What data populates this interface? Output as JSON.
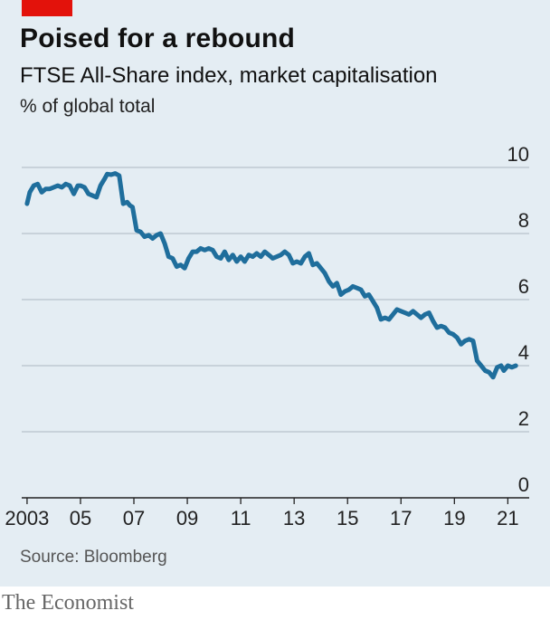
{
  "header": {
    "title": "Poised for a rebound",
    "subtitle": "FTSE All-Share index, market capitalisation",
    "unit": "% of global total"
  },
  "footer": {
    "source": "Source: Bloomberg",
    "brand": "The Economist"
  },
  "colors": {
    "line": "#1f6e9c",
    "grid": "#b7c3cc",
    "accent": "#e3120b",
    "background": "#e4edf3"
  },
  "chart_data": {
    "type": "line",
    "ylim": [
      0,
      10
    ],
    "xlim": [
      2002.8,
      2021.8
    ],
    "yticks": [
      0,
      2,
      4,
      6,
      8,
      10
    ],
    "xticks": [
      {
        "value": 2003,
        "label": "2003"
      },
      {
        "value": 2005,
        "label": "05"
      },
      {
        "value": 2007,
        "label": "07"
      },
      {
        "value": 2009,
        "label": "09"
      },
      {
        "value": 2011,
        "label": "11"
      },
      {
        "value": 2013,
        "label": "13"
      },
      {
        "value": 2015,
        "label": "15"
      },
      {
        "value": 2017,
        "label": "17"
      },
      {
        "value": 2019,
        "label": "19"
      },
      {
        "value": 2021,
        "label": "21"
      }
    ],
    "grid": true,
    "series": [
      {
        "x": [
          2003.0,
          2003.1,
          2003.25,
          2003.4,
          2003.55,
          2003.7,
          2003.85,
          2004.0,
          2004.15,
          2004.3,
          2004.45,
          2004.6,
          2004.75,
          2004.9,
          2005.0,
          2005.15,
          2005.3,
          2005.45,
          2005.6,
          2005.75,
          2005.9,
          2006.0,
          2006.15,
          2006.3,
          2006.45,
          2006.6,
          2006.75,
          2006.85,
          2006.95,
          2007.1,
          2007.25,
          2007.4,
          2007.55,
          2007.7,
          2007.85,
          2008.0,
          2008.15,
          2008.3,
          2008.45,
          2008.6,
          2008.75,
          2008.9,
          2009.05,
          2009.2,
          2009.35,
          2009.5,
          2009.65,
          2009.8,
          2009.95,
          2010.1,
          2010.25,
          2010.4,
          2010.55,
          2010.7,
          2010.85,
          2011.0,
          2011.15,
          2011.3,
          2011.45,
          2011.6,
          2011.75,
          2011.9,
          2012.05,
          2012.2,
          2012.35,
          2012.5,
          2012.65,
          2012.8,
          2012.95,
          2013.1,
          2013.25,
          2013.4,
          2013.55,
          2013.7,
          2013.85,
          2014.0,
          2014.15,
          2014.3,
          2014.45,
          2014.6,
          2014.75,
          2014.9,
          2015.05,
          2015.2,
          2015.35,
          2015.5,
          2015.65,
          2015.8,
          2015.95,
          2016.1,
          2016.25,
          2016.4,
          2016.55,
          2016.7,
          2016.85,
          2017.0,
          2017.15,
          2017.3,
          2017.45,
          2017.6,
          2017.75,
          2017.9,
          2018.05,
          2018.2,
          2018.35,
          2018.5,
          2018.65,
          2018.8,
          2018.95,
          2019.1,
          2019.25,
          2019.4,
          2019.55,
          2019.7,
          2019.85,
          2020.0,
          2020.15,
          2020.3,
          2020.45,
          2020.6,
          2020.75,
          2020.85,
          2021.0,
          2021.15,
          2021.3
        ],
        "values": [
          8.9,
          9.25,
          9.45,
          9.5,
          9.25,
          9.35,
          9.35,
          9.4,
          9.45,
          9.4,
          9.5,
          9.45,
          9.2,
          9.45,
          9.45,
          9.4,
          9.2,
          9.15,
          9.1,
          9.45,
          9.65,
          9.8,
          9.78,
          9.82,
          9.75,
          8.9,
          8.95,
          8.85,
          8.8,
          8.1,
          8.05,
          7.9,
          7.95,
          7.85,
          7.95,
          8.0,
          7.7,
          7.3,
          7.25,
          7.0,
          7.05,
          6.95,
          7.25,
          7.45,
          7.45,
          7.55,
          7.5,
          7.55,
          7.5,
          7.3,
          7.25,
          7.45,
          7.2,
          7.35,
          7.15,
          7.3,
          7.15,
          7.35,
          7.3,
          7.4,
          7.3,
          7.45,
          7.35,
          7.25,
          7.3,
          7.35,
          7.45,
          7.35,
          7.1,
          7.15,
          7.1,
          7.3,
          7.4,
          7.05,
          7.1,
          6.95,
          6.8,
          6.55,
          6.4,
          6.5,
          6.15,
          6.25,
          6.3,
          6.4,
          6.35,
          6.3,
          6.1,
          6.15,
          5.95,
          5.75,
          5.4,
          5.45,
          5.4,
          5.55,
          5.7,
          5.65,
          5.6,
          5.55,
          5.65,
          5.55,
          5.45,
          5.55,
          5.6,
          5.35,
          5.15,
          5.2,
          5.15,
          5.0,
          4.95,
          4.85,
          4.65,
          4.75,
          4.8,
          4.75,
          4.15,
          4.0,
          3.85,
          3.8,
          3.65,
          3.95,
          4.0,
          3.85,
          4.0,
          3.95,
          4.0
        ]
      }
    ]
  }
}
